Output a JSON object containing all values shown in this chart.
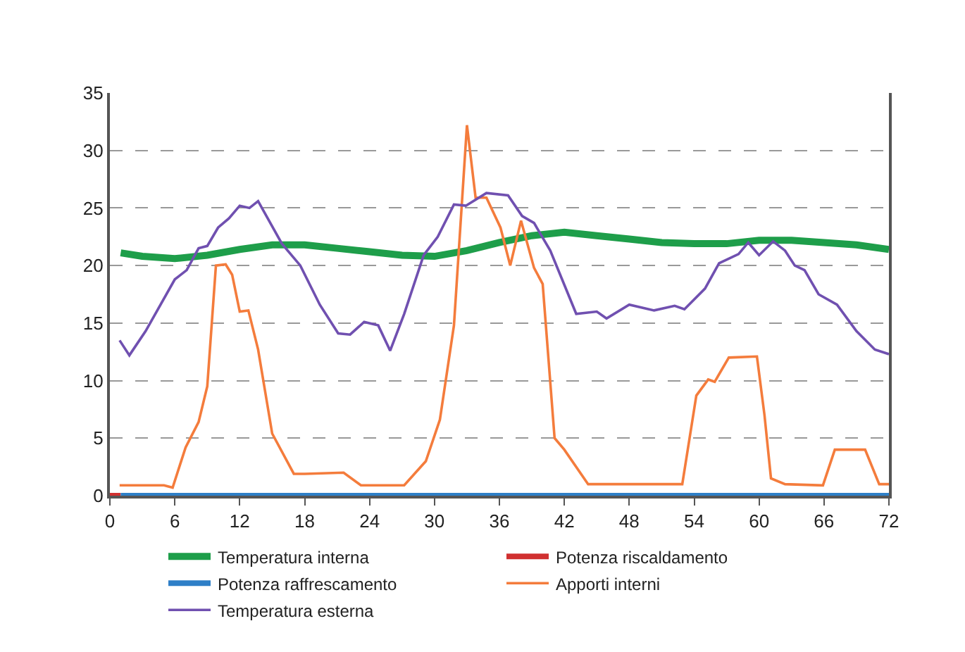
{
  "chart_data": {
    "type": "line",
    "xlim": [
      0,
      72
    ],
    "xticks": [
      0,
      6,
      12,
      18,
      24,
      30,
      36,
      42,
      48,
      54,
      60,
      66,
      72
    ],
    "ylim": [
      0,
      35
    ],
    "yticks": [
      0,
      5,
      10,
      15,
      20,
      25,
      30,
      35
    ],
    "grid": "y",
    "legend": "bottom",
    "marker": "none",
    "line_style": "solid",
    "series": [
      {
        "name": "Temperatura interna",
        "color": "#1e9e4a",
        "x": [
          1,
          3,
          6,
          9,
          12,
          15,
          18,
          21,
          24,
          27,
          30,
          33,
          36,
          39,
          42,
          45,
          48,
          51,
          54,
          57,
          60,
          63,
          66,
          69,
          72
        ],
        "values": [
          21.1,
          20.8,
          20.6,
          20.9,
          21.4,
          21.8,
          21.8,
          21.5,
          21.2,
          20.9,
          20.8,
          21.3,
          22.0,
          22.6,
          22.9,
          22.6,
          22.3,
          22.0,
          21.9,
          21.9,
          22.2,
          22.2,
          22.0,
          21.8,
          21.4
        ]
      },
      {
        "name": "Potenza riscaldamento",
        "color": "#d03030",
        "x": [
          0,
          1
        ],
        "values": [
          0,
          0
        ]
      },
      {
        "name": "Potenza raffrescamento",
        "color": "#2e7fc7",
        "x": [
          1,
          72
        ],
        "values": [
          0,
          0
        ]
      },
      {
        "name": "Apporti interni",
        "color": "#f47c3c",
        "x": [
          0.9,
          5,
          5.8,
          7,
          8.2,
          9,
          9.8,
          10.7,
          11.3,
          12,
          12.8,
          13.7,
          15,
          17,
          18,
          21.6,
          23.2,
          27.2,
          29.2,
          30.5,
          31.8,
          33,
          33.8,
          34.8,
          36.1,
          37,
          38,
          39.2,
          40,
          41.1,
          42,
          44.2,
          52.9,
          54.2,
          55.3,
          55.9,
          57.2,
          59.8,
          60.5,
          61.1,
          62.4,
          65.9,
          67,
          69.8,
          71.1,
          72
        ],
        "values": [
          0.9,
          0.9,
          0.7,
          4.2,
          6.4,
          9.5,
          20.0,
          20.1,
          19.2,
          16.0,
          16.1,
          12.7,
          5.4,
          1.9,
          1.9,
          2.0,
          0.9,
          0.9,
          3.0,
          6.6,
          14.8,
          32.2,
          25.9,
          25.9,
          23.3,
          20.0,
          23.9,
          19.8,
          18.4,
          5.0,
          4.0,
          1.0,
          1.0,
          8.7,
          10.1,
          9.9,
          12.0,
          12.1,
          7.0,
          1.5,
          1.0,
          0.9,
          4.0,
          4.0,
          1.0,
          1.0
        ]
      },
      {
        "name": "Temperatura esterna",
        "color": "#7050b0",
        "x": [
          0.9,
          1.8,
          3.3,
          6,
          7.1,
          8.2,
          9,
          10,
          11,
          12,
          12.9,
          13.7,
          15.9,
          17.6,
          19.4,
          21.1,
          22.2,
          23.5,
          24.8,
          25.9,
          27.2,
          29,
          30.3,
          31.8,
          32.9,
          34.8,
          36.8,
          38.1,
          39.2,
          40.7,
          43.1,
          45,
          45.9,
          48,
          50.3,
          52.2,
          53.1,
          55,
          56.3,
          58.1,
          59,
          60,
          61.3,
          62.4,
          63.3,
          64.2,
          65.5,
          67.2,
          69,
          70.7,
          72
        ],
        "values": [
          13.5,
          12.2,
          14.3,
          18.8,
          19.6,
          21.5,
          21.7,
          23.3,
          24.1,
          25.2,
          25.0,
          25.6,
          21.9,
          20.0,
          16.6,
          14.1,
          14.0,
          15.1,
          14.8,
          12.6,
          15.8,
          20.9,
          22.5,
          25.3,
          25.2,
          26.3,
          26.1,
          24.3,
          23.7,
          21.3,
          15.8,
          16.0,
          15.4,
          16.6,
          16.1,
          16.5,
          16.2,
          18.0,
          20.2,
          21.0,
          22.0,
          20.9,
          22.1,
          21.3,
          20.0,
          19.6,
          17.5,
          16.6,
          14.3,
          12.7,
          12.3
        ]
      }
    ]
  }
}
